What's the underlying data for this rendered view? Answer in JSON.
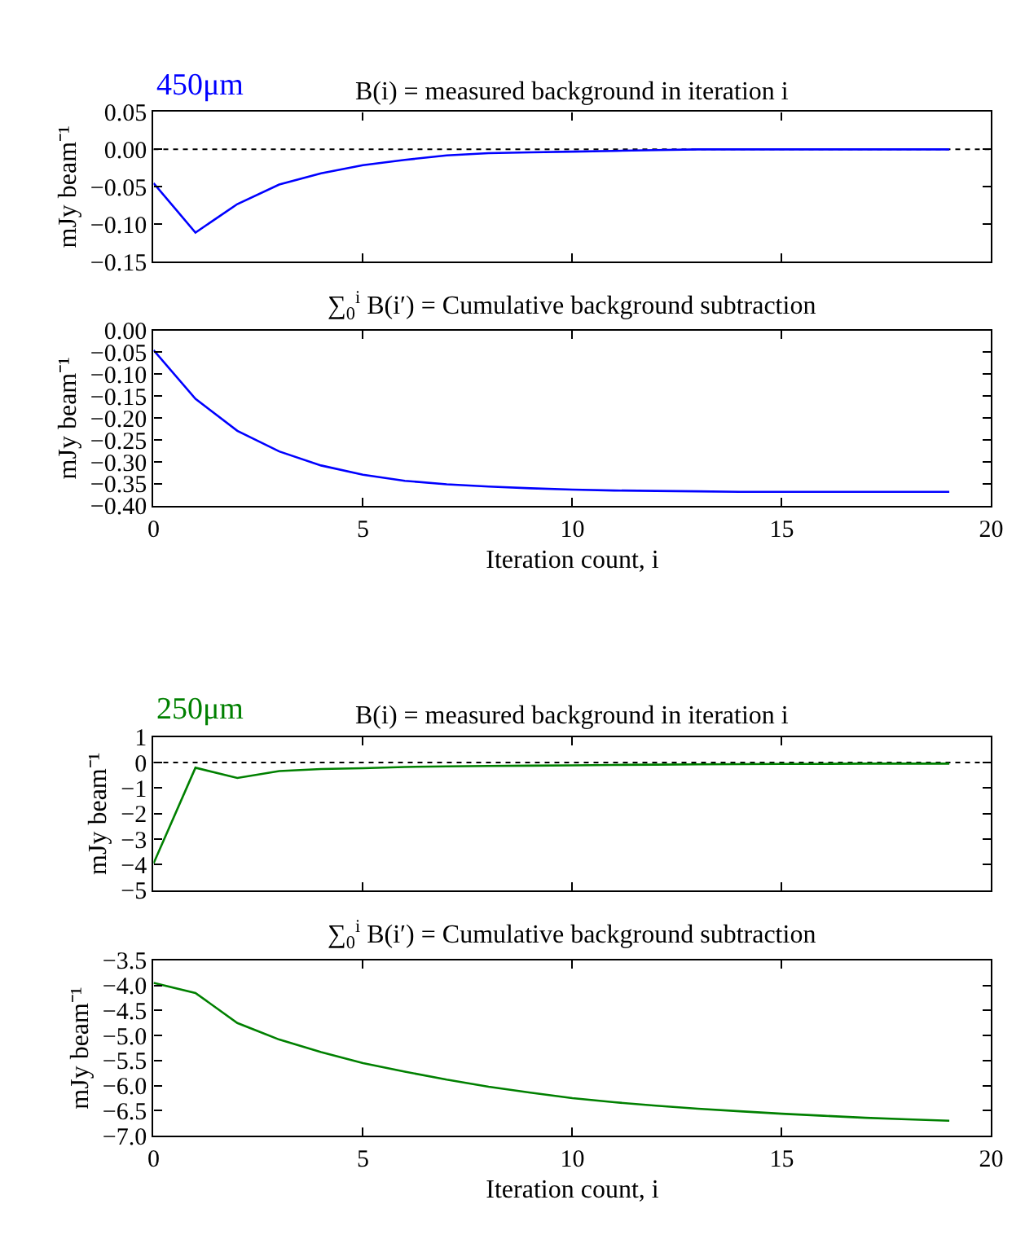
{
  "chart_data": [
    {
      "type": "line",
      "title": "B(i) = measured background in iteration i",
      "ylabel": "mJy beam⁻¹",
      "annotations": [
        "450μm"
      ],
      "tick_labels": "y",
      "grid": false,
      "x": [
        0,
        1,
        2,
        3,
        4,
        5,
        6,
        7,
        8,
        9,
        10,
        11,
        12,
        13,
        14,
        15,
        16,
        17,
        18,
        19
      ],
      "xlim": [
        0,
        20
      ],
      "xticks": [
        0,
        5,
        10,
        15,
        20
      ],
      "ylim": [
        -0.15,
        0.05
      ],
      "yticks": [
        {
          "value": -0.15,
          "label": "−0.15"
        },
        {
          "value": -0.1,
          "label": "−0.10"
        },
        {
          "value": -0.05,
          "label": "−0.05"
        },
        {
          "value": 0,
          "label": "0.00"
        },
        {
          "value": 0.05,
          "label": "0.05"
        }
      ],
      "ref_lines": [
        {
          "axis": "y",
          "value": 0,
          "color": "#000000",
          "line_style": "dotted"
        }
      ],
      "series": [
        {
          "color": "#0000ff",
          "values": [
            -0.045,
            -0.111,
            -0.073,
            -0.047,
            -0.032,
            -0.021,
            -0.014,
            -0.008,
            -0.005,
            -0.004,
            -0.003,
            -0.002,
            -0.001,
            0,
            0,
            0,
            0,
            0,
            0,
            0
          ]
        }
      ]
    },
    {
      "type": "line",
      "title": "∑$_{0}$$^{i}$ B(i′) = Cumulative background subtraction",
      "ylabel": "mJy beam⁻¹",
      "xlabel": "Iteration count, i",
      "grid": false,
      "x": [
        0,
        1,
        2,
        3,
        4,
        5,
        6,
        7,
        8,
        9,
        10,
        11,
        12,
        13,
        14,
        15,
        16,
        17,
        18,
        19
      ],
      "xlim": [
        0,
        20
      ],
      "xticks": [
        0,
        5,
        10,
        15,
        20
      ],
      "ylim": [
        -0.4,
        0
      ],
      "yticks": [
        {
          "value": -0.4,
          "label": "−0.40"
        },
        {
          "value": -0.35,
          "label": "−0.35"
        },
        {
          "value": -0.3,
          "label": "−0.30"
        },
        {
          "value": -0.25,
          "label": "−0.25"
        },
        {
          "value": -0.2,
          "label": "−0.20"
        },
        {
          "value": -0.15,
          "label": "−0.15"
        },
        {
          "value": -0.1,
          "label": "−0.10"
        },
        {
          "value": -0.05,
          "label": "−0.05"
        },
        {
          "value": 0,
          "label": "0.00"
        }
      ],
      "series": [
        {
          "color": "#0000ff",
          "values": [
            -0.045,
            -0.156,
            -0.229,
            -0.276,
            -0.308,
            -0.329,
            -0.343,
            -0.351,
            -0.356,
            -0.36,
            -0.363,
            -0.365,
            -0.366,
            -0.367,
            -0.368,
            -0.368,
            -0.368,
            -0.368,
            -0.368,
            -0.368
          ]
        }
      ]
    },
    {
      "type": "line",
      "title": "B(i) = measured background in iteration i",
      "ylabel": "mJy beam⁻¹",
      "annotations": [
        "250μm"
      ],
      "tick_labels": "y",
      "grid": false,
      "x": [
        0,
        1,
        2,
        3,
        4,
        5,
        6,
        7,
        8,
        9,
        10,
        11,
        12,
        13,
        14,
        15,
        16,
        17,
        18,
        19
      ],
      "xlim": [
        0,
        20
      ],
      "xticks": [
        0,
        5,
        10,
        15,
        20
      ],
      "ylim": [
        -5,
        1
      ],
      "yticks": [
        {
          "value": -5,
          "label": "−5"
        },
        {
          "value": -4,
          "label": "−4"
        },
        {
          "value": -3,
          "label": "−3"
        },
        {
          "value": -2,
          "label": "−2"
        },
        {
          "value": -1,
          "label": "−1"
        },
        0,
        1
      ],
      "ref_lines": [
        {
          "axis": "y",
          "value": 0,
          "color": "#000000",
          "line_style": "dotted"
        }
      ],
      "series": [
        {
          "color": "#008000",
          "values": [
            -3.95,
            -0.2,
            -0.6,
            -0.33,
            -0.25,
            -0.22,
            -0.17,
            -0.15,
            -0.13,
            -0.12,
            -0.11,
            -0.09,
            -0.08,
            -0.07,
            -0.06,
            -0.05,
            -0.05,
            -0.04,
            -0.04,
            -0.04
          ]
        }
      ]
    },
    {
      "type": "line",
      "title": "∑$_{0}$$^{i}$ B(i′) = Cumulative background subtraction",
      "ylabel": "mJy beam⁻¹",
      "xlabel": "Iteration count, i",
      "grid": false,
      "x": [
        0,
        1,
        2,
        3,
        4,
        5,
        6,
        7,
        8,
        9,
        10,
        11,
        12,
        13,
        14,
        15,
        16,
        17,
        18,
        19
      ],
      "xlim": [
        0,
        20
      ],
      "xticks": [
        0,
        5,
        10,
        15,
        20
      ],
      "ylim": [
        -7,
        -3.5
      ],
      "yticks": [
        {
          "value": -7,
          "label": "−7.0"
        },
        {
          "value": -6.5,
          "label": "−6.5"
        },
        {
          "value": -6,
          "label": "−6.0"
        },
        {
          "value": -5.5,
          "label": "−5.5"
        },
        {
          "value": -5,
          "label": "−5.0"
        },
        {
          "value": -4.5,
          "label": "−4.5"
        },
        {
          "value": -4,
          "label": "−4.0"
        },
        {
          "value": -3.5,
          "label": "−3.5"
        }
      ],
      "series": [
        {
          "color": "#008000",
          "values": [
            -3.95,
            -4.15,
            -4.75,
            -5.08,
            -5.33,
            -5.55,
            -5.72,
            -5.88,
            -6.02,
            -6.14,
            -6.25,
            -6.33,
            -6.4,
            -6.46,
            -6.51,
            -6.56,
            -6.6,
            -6.64,
            -6.67,
            -6.7
          ]
        }
      ]
    }
  ]
}
